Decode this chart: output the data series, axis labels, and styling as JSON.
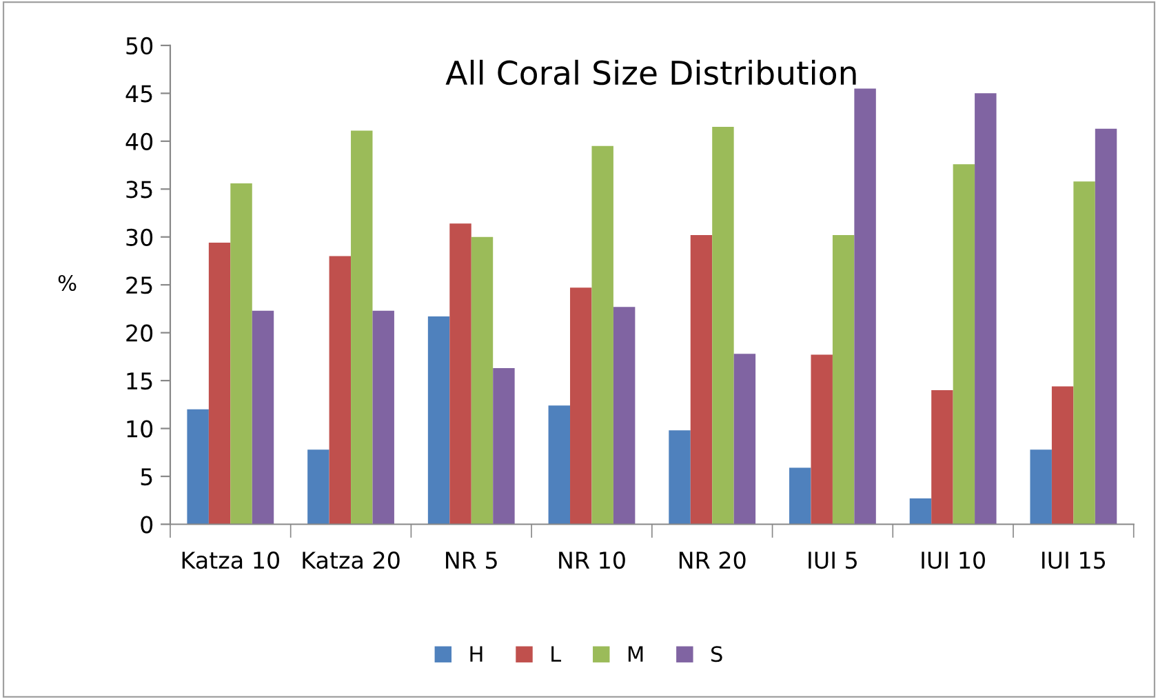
{
  "chart_data": {
    "type": "bar",
    "title": "All Coral Size Distribution",
    "ylabel": "%",
    "categories": [
      "Katza 10",
      "Katza 20",
      "NR 5",
      "NR 10",
      "NR 20",
      "IUI 5",
      "IUI 10",
      "IUI 15"
    ],
    "series": [
      {
        "name": "H",
        "color": "#4f81bd",
        "values": [
          12,
          7.8,
          21.7,
          12.4,
          9.8,
          5.9,
          2.7,
          7.8
        ]
      },
      {
        "name": "L",
        "color": "#c0504d",
        "values": [
          29.4,
          28,
          31.4,
          24.7,
          30.2,
          17.7,
          14,
          14.4
        ]
      },
      {
        "name": "M",
        "color": "#9bbb59",
        "values": [
          35.6,
          41.1,
          30,
          39.5,
          41.5,
          30.2,
          37.6,
          35.8
        ]
      },
      {
        "name": "S",
        "color": "#8064a2",
        "values": [
          22.3,
          22.3,
          16.3,
          22.7,
          17.8,
          45.5,
          45,
          41.3
        ]
      }
    ],
    "ylim": [
      0,
      50
    ],
    "yticks": [
      0,
      5,
      10,
      15,
      20,
      25,
      30,
      35,
      40,
      45,
      50
    ],
    "grid": false,
    "legend": "bottom"
  }
}
